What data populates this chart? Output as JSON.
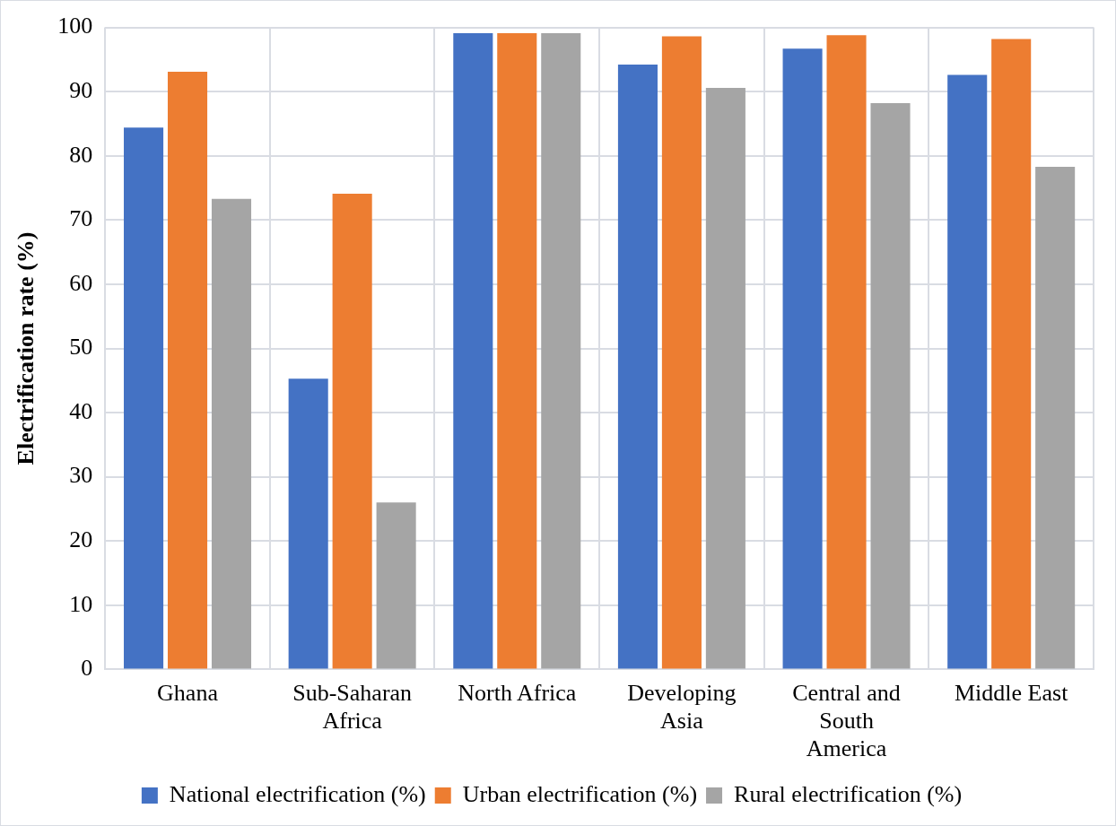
{
  "chart_data": {
    "type": "bar",
    "ylabel": "Electrification rate (%)",
    "categories": [
      "Ghana",
      "Sub-Saharan Africa",
      "North Africa",
      "Developing Asia",
      "Central and South America",
      "Middle East"
    ],
    "series": [
      {
        "name": "National electrification (%)",
        "color": "#4472c4",
        "values": [
          84.4,
          45.3,
          99.1,
          94.2,
          96.7,
          92.6
        ]
      },
      {
        "name": "Urban electrification (%)",
        "color": "#ed7d31",
        "values": [
          93.1,
          74.1,
          99.1,
          98.6,
          98.8,
          98.2
        ]
      },
      {
        "name": "Rural electrification (%)",
        "color": "#a5a5a5",
        "values": [
          73.3,
          26.0,
          99.1,
          90.6,
          88.2,
          78.3
        ]
      }
    ],
    "ylim": [
      0,
      100
    ],
    "yticks": [
      0,
      10,
      20,
      30,
      40,
      50,
      60,
      70,
      80,
      90,
      100
    ],
    "grid": true,
    "legend": "bottom"
  }
}
